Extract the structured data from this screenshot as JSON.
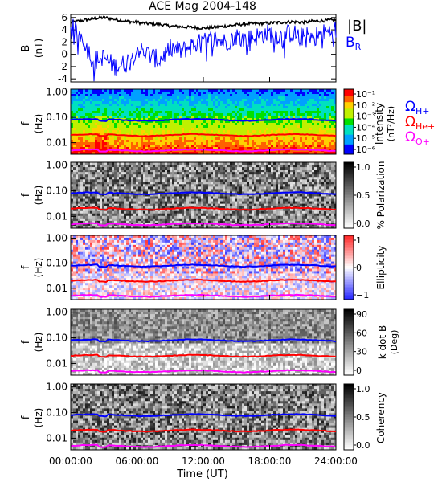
{
  "chart_data": [
    {
      "type": "line",
      "title": "ACE Mag 2004-148",
      "ylabel": "B",
      "yunits": "(nT)",
      "ylim": [
        -4.5,
        6.5
      ],
      "yticks": [
        6,
        4,
        2,
        0,
        -2,
        -4
      ],
      "xlim_hours": [
        0,
        24
      ],
      "legend": [
        {
          "label": "|B|",
          "color": "#000000"
        },
        {
          "label": "B",
          "sub": "R",
          "color": "#0000ff"
        }
      ],
      "series": [
        {
          "name": "|B|",
          "color": "#000000",
          "x": [
            0,
            1,
            2,
            3,
            4,
            5,
            6,
            7,
            8,
            9,
            10,
            11,
            12,
            13,
            14,
            15,
            16,
            17,
            18,
            19,
            20,
            21,
            22,
            23,
            24
          ],
          "values": [
            5.2,
            5.5,
            5.8,
            6.0,
            5.7,
            5.4,
            5.2,
            5.0,
            4.9,
            4.6,
            4.5,
            4.4,
            4.3,
            4.4,
            4.6,
            4.8,
            5.0,
            5.0,
            5.1,
            5.2,
            5.3,
            5.2,
            5.4,
            5.5,
            5.6
          ]
        },
        {
          "name": "B_R",
          "color": "#0000ff",
          "x": [
            0,
            1,
            2,
            3,
            4,
            5,
            6,
            7,
            8,
            9,
            10,
            11,
            12,
            13,
            14,
            15,
            16,
            17,
            18,
            19,
            20,
            21,
            22,
            23,
            24
          ],
          "values": [
            4.5,
            3.0,
            -1.0,
            -0.5,
            -2.0,
            -1.5,
            1.0,
            0.0,
            -1.0,
            1.0,
            0.5,
            1.5,
            2.0,
            2.5,
            2.0,
            3.0,
            2.5,
            3.0,
            3.5,
            3.0,
            3.5,
            2.8,
            3.0,
            3.5,
            4.0
          ]
        }
      ]
    },
    {
      "type": "heatmap",
      "ylabel": "f",
      "yunits": "(Hz)",
      "yticks": [
        "1.00",
        "0.10",
        "0.01"
      ],
      "colorbar": {
        "label": "Intensity",
        "units": "(nT²/Hz)",
        "ticks": [
          "10⁻¹",
          "10⁻²",
          "10⁻³",
          "10⁻⁴",
          "10⁻⁵",
          "10⁻⁶"
        ],
        "palette": "rainbow"
      },
      "gyro_labels": [
        {
          "label": "Ω",
          "sub": "H+",
          "color": "#0000ff"
        },
        {
          "label": "Ω",
          "sub": "He+",
          "color": "#ff0000"
        },
        {
          "label": "Ω",
          "sub": "O+",
          "color": "#ff00ff"
        }
      ]
    },
    {
      "type": "heatmap",
      "ylabel": "f",
      "yunits": "(Hz)",
      "yticks": [
        "1.00",
        "0.10",
        "0.01"
      ],
      "colorbar": {
        "label": "% Polarization",
        "ticks": [
          "1.0",
          "0.5",
          "0.0"
        ],
        "palette": "gray"
      }
    },
    {
      "type": "heatmap",
      "ylabel": "f",
      "yunits": "(Hz)",
      "yticks": [
        "1.00",
        "0.10",
        "0.01"
      ],
      "colorbar": {
        "label": "Ellipticity",
        "ticks": [
          "1",
          "0",
          "−1"
        ],
        "palette": "bwr"
      }
    },
    {
      "type": "heatmap",
      "ylabel": "f",
      "yunits": "(Hz)",
      "yticks": [
        "1.00",
        "0.10",
        "0.01"
      ],
      "colorbar": {
        "label": "k dot B",
        "units": "(Deg)",
        "ticks": [
          "90",
          "60",
          "30",
          "0"
        ],
        "palette": "gray"
      }
    },
    {
      "type": "heatmap",
      "ylabel": "f",
      "yunits": "(Hz)",
      "yticks": [
        "1.00",
        "0.10",
        "0.01"
      ],
      "colorbar": {
        "label": "Coherency",
        "ticks": [
          "1.0",
          "0.5",
          "0.0"
        ],
        "palette": "gray"
      },
      "xlabel": "Time (UT)",
      "xticks": [
        "00:00:00",
        "06:00:00",
        "12:00:00",
        "18:00:00",
        "24:00:00"
      ]
    }
  ],
  "gyro_lines": {
    "h_plus_hz": 0.08,
    "he_plus_hz": 0.02,
    "o_plus_hz": 0.005,
    "colors": {
      "h": "#0000ff",
      "he": "#ff0000",
      "o": "#ff00ff"
    }
  }
}
